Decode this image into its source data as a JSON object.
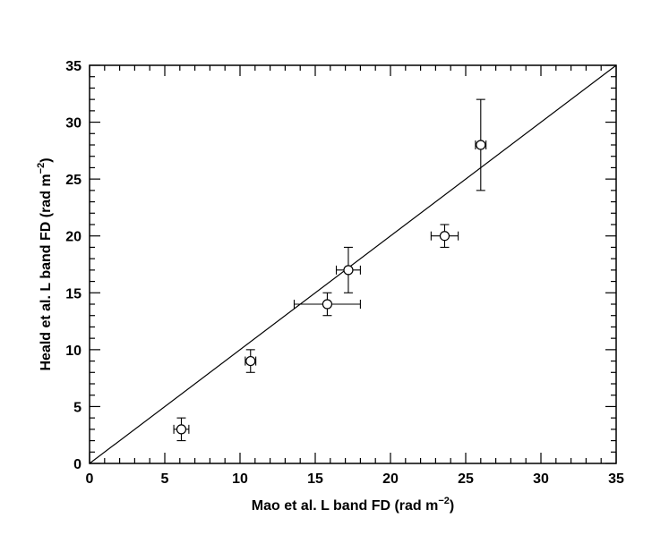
{
  "chart_data": {
    "type": "scatter",
    "xlabel": {
      "prefix": "Mao et al. L band FD (rad m",
      "sup": "−2",
      "suffix": ")"
    },
    "ylabel": {
      "prefix": "Heald et al. L band FD (rad m",
      "sup": "−2",
      "suffix": ")"
    },
    "xlim": [
      0,
      35
    ],
    "ylim": [
      0,
      35
    ],
    "xticks": [
      "0",
      "5",
      "10",
      "15",
      "20",
      "25",
      "30",
      "35"
    ],
    "yticks": [
      "0",
      "5",
      "10",
      "15",
      "20",
      "25",
      "30",
      "35"
    ],
    "reference_line": {
      "x": [
        0,
        35
      ],
      "y": [
        0,
        35
      ]
    },
    "points": [
      {
        "x": 6.1,
        "y": 3.0,
        "xerr": 0.5,
        "yerr": 1.0
      },
      {
        "x": 10.7,
        "y": 9.0,
        "xerr": 0.35,
        "yerr": 1.0
      },
      {
        "x": 15.8,
        "y": 14.0,
        "xerr": 2.2,
        "yerr": 1.0
      },
      {
        "x": 17.2,
        "y": 17.0,
        "xerr": 0.8,
        "yerr": 2.0
      },
      {
        "x": 23.6,
        "y": 20.0,
        "xerr": 0.9,
        "yerr": 1.0
      },
      {
        "x": 26.0,
        "y": 28.0,
        "xerr": 0.35,
        "yerr": 4.0
      }
    ],
    "grid": false,
    "legend": "none"
  }
}
